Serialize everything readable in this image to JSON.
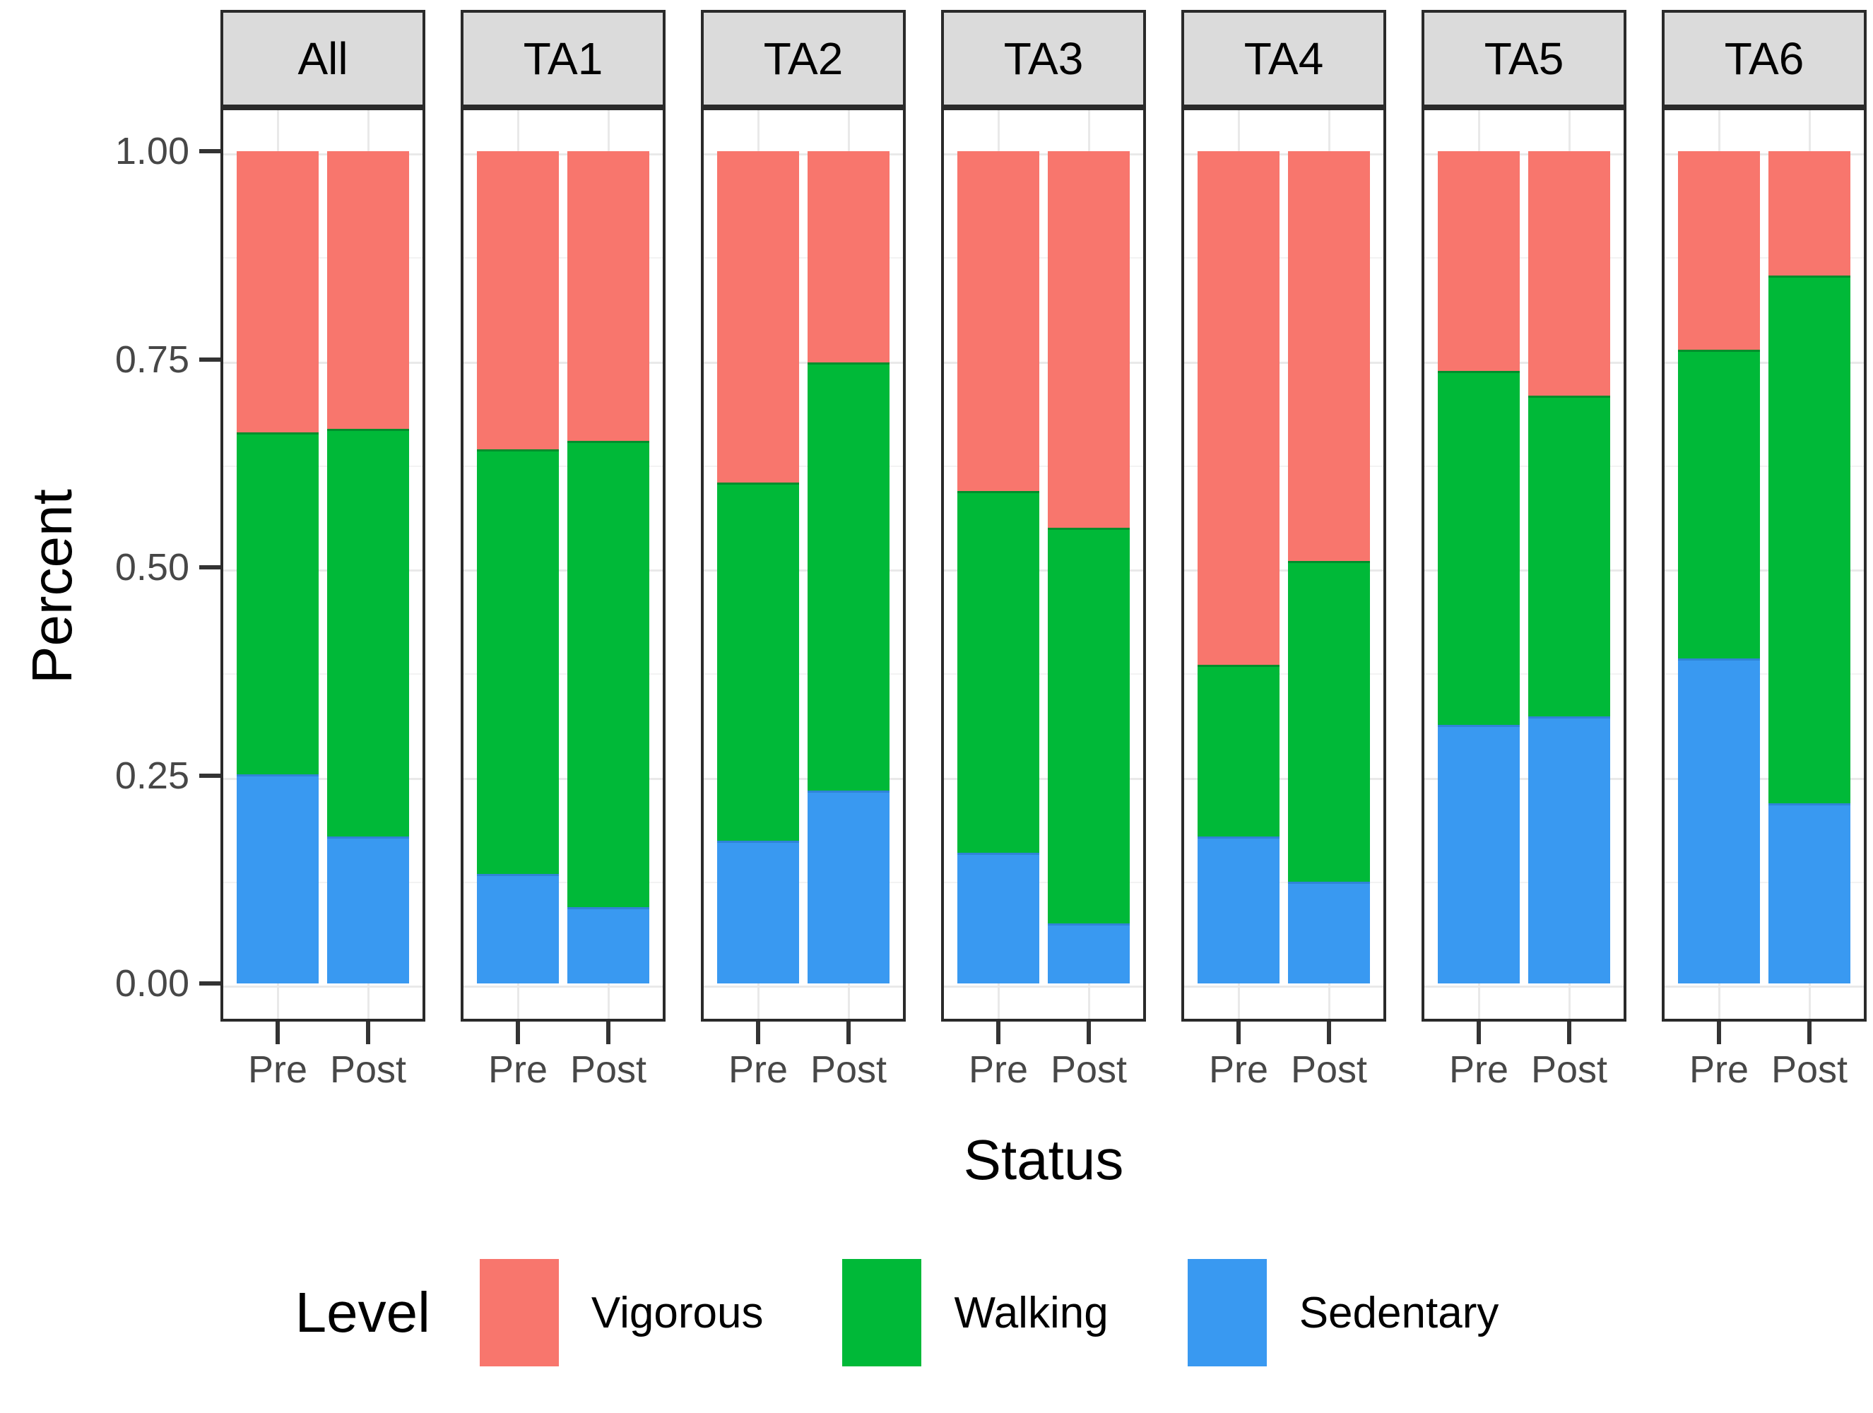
{
  "y_axis": {
    "title": "Percent",
    "ticks": [
      {
        "label": "1.00",
        "value": 1.0
      },
      {
        "label": "0.75",
        "value": 0.75
      },
      {
        "label": "0.50",
        "value": 0.5
      },
      {
        "label": "0.25",
        "value": 0.25
      },
      {
        "label": "0.00",
        "value": 0.0
      }
    ]
  },
  "x_axis": {
    "title": "Status",
    "categories": [
      "Pre",
      "Post"
    ]
  },
  "legend": {
    "title": "Level",
    "items": [
      {
        "label": "Vigorous",
        "color": "#F8766D"
      },
      {
        "label": "Walking",
        "color": "#00B938"
      },
      {
        "label": "Sedentary",
        "color": "#3999F1"
      }
    ]
  },
  "style": {
    "strip_fill": "#DBDBDB",
    "panel_border": "#2A2A2A",
    "grid_major": "#E9E9E9",
    "grid_minor": "#F3F3F3",
    "tick_label_color": "#474747",
    "background": "#FFFFFF"
  },
  "chart_data": {
    "type": "bar",
    "stacked": true,
    "normalized": true,
    "orientation": "vertical",
    "ylim": [
      0,
      1
    ],
    "grid": true,
    "legend_position": "bottom",
    "stack_order_bottom_to_top": [
      "Sedentary",
      "Walking",
      "Vigorous"
    ],
    "series_colors": {
      "Vigorous": "#F8766D",
      "Walking": "#00B938",
      "Sedentary": "#3999F1"
    },
    "facets": [
      {
        "label": "All",
        "bars": [
          {
            "category": "Pre",
            "Sedentary": 0.25,
            "Walking": 0.41,
            "Vigorous": 0.34
          },
          {
            "category": "Post",
            "Sedentary": 0.175,
            "Walking": 0.49,
            "Vigorous": 0.335
          }
        ]
      },
      {
        "label": "TA1",
        "bars": [
          {
            "category": "Pre",
            "Sedentary": 0.13,
            "Walking": 0.51,
            "Vigorous": 0.36
          },
          {
            "category": "Post",
            "Sedentary": 0.09,
            "Walking": 0.56,
            "Vigorous": 0.35
          }
        ]
      },
      {
        "label": "TA2",
        "bars": [
          {
            "category": "Pre",
            "Sedentary": 0.17,
            "Walking": 0.43,
            "Vigorous": 0.4
          },
          {
            "category": "Post",
            "Sedentary": 0.23,
            "Walking": 0.515,
            "Vigorous": 0.255
          }
        ]
      },
      {
        "label": "TA3",
        "bars": [
          {
            "category": "Pre",
            "Sedentary": 0.155,
            "Walking": 0.435,
            "Vigorous": 0.41
          },
          {
            "category": "Post",
            "Sedentary": 0.07,
            "Walking": 0.475,
            "Vigorous": 0.455
          }
        ]
      },
      {
        "label": "TA4",
        "bars": [
          {
            "category": "Pre",
            "Sedentary": 0.175,
            "Walking": 0.205,
            "Vigorous": 0.62
          },
          {
            "category": "Post",
            "Sedentary": 0.12,
            "Walking": 0.385,
            "Vigorous": 0.495
          }
        ]
      },
      {
        "label": "TA5",
        "bars": [
          {
            "category": "Pre",
            "Sedentary": 0.31,
            "Walking": 0.425,
            "Vigorous": 0.265
          },
          {
            "category": "Post",
            "Sedentary": 0.32,
            "Walking": 0.385,
            "Vigorous": 0.295
          }
        ]
      },
      {
        "label": "TA6",
        "bars": [
          {
            "category": "Pre",
            "Sedentary": 0.39,
            "Walking": 0.37,
            "Vigorous": 0.24
          },
          {
            "category": "Post",
            "Sedentary": 0.215,
            "Walking": 0.635,
            "Vigorous": 0.15
          }
        ]
      }
    ]
  }
}
